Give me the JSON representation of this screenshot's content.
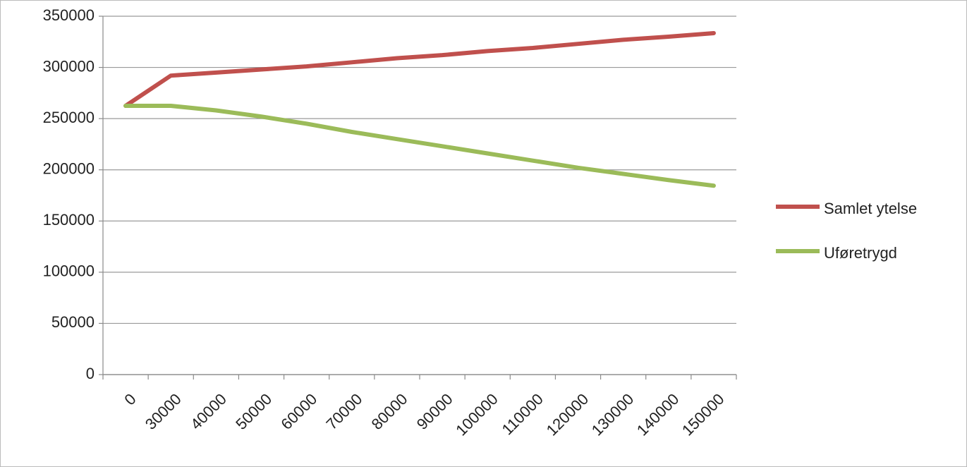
{
  "chart_data": {
    "type": "line",
    "categories": [
      "0",
      "30000",
      "40000",
      "50000",
      "60000",
      "70000",
      "80000",
      "90000",
      "100000",
      "110000",
      "120000",
      "130000",
      "140000",
      "150000"
    ],
    "series": [
      {
        "name": "Samlet ytelse",
        "color": "#c0504d",
        "values": [
          262500,
          292000,
          295000,
          298000,
          301000,
          305000,
          309000,
          312000,
          316000,
          319000,
          323000,
          327000,
          330000,
          333500
        ]
      },
      {
        "name": "Uføretrygd",
        "color": "#9bbb59",
        "values": [
          262500,
          262500,
          258000,
          252000,
          245000,
          237000,
          230000,
          223000,
          216000,
          209000,
          202000,
          196000,
          190000,
          184500
        ]
      }
    ],
    "ylim": [
      0,
      350000
    ],
    "yticks": [
      0,
      50000,
      100000,
      150000,
      200000,
      250000,
      300000,
      350000
    ],
    "grid": true,
    "legend": "right"
  }
}
